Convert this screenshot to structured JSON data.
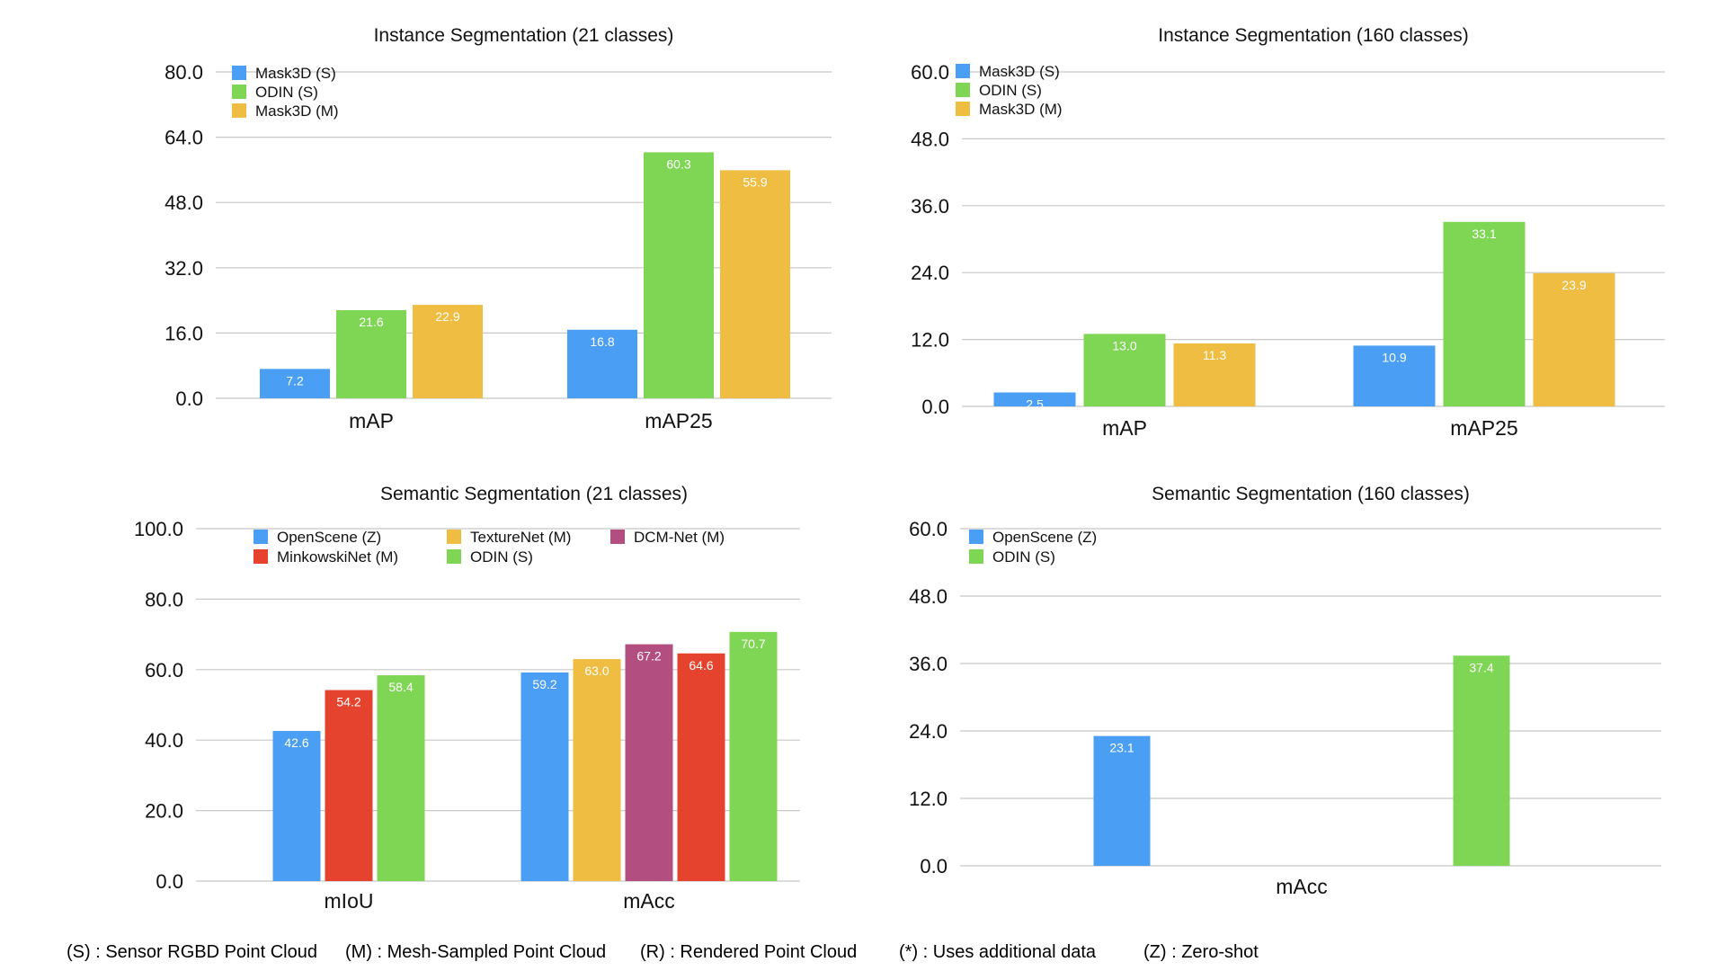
{
  "colors": {
    "blue": "#4a9ff4",
    "green": "#7fd654",
    "yellow": "#efbd41",
    "purple": "#b24f80",
    "red": "#e5432d",
    "grid": "#c8c8c8",
    "text": "#111111"
  },
  "footnotes": [
    "(S) : Sensor RGBD Point Cloud",
    "(M) : Mesh-Sampled Point Cloud",
    "(R) : Rendered Point Cloud",
    "(*) : Uses additional data",
    "(Z) : Zero-shot"
  ],
  "chart_data": [
    {
      "type": "bar",
      "title": "Instance Segmentation (21 classes)",
      "categories": [
        "mAP",
        "mAP25"
      ],
      "ylim": [
        0,
        80
      ],
      "yticks": [
        "0.0",
        "16.0",
        "32.0",
        "48.0",
        "64.0",
        "80.0"
      ],
      "grid": true,
      "legend_position": "top-left",
      "legend_rows": [
        [
          "Mask3D (S)"
        ],
        [
          "ODIN (S)"
        ],
        [
          "Mask3D (M)"
        ]
      ],
      "series": [
        {
          "name": "Mask3D (S)",
          "color": "blue",
          "values": [
            7.2,
            16.8
          ],
          "labels": [
            "7.2",
            "16.8"
          ]
        },
        {
          "name": "ODIN (S)",
          "color": "green",
          "values": [
            21.6,
            60.3
          ],
          "labels": [
            "21.6",
            "60.3"
          ]
        },
        {
          "name": "Mask3D (M)",
          "color": "yellow",
          "values": [
            22.9,
            55.9
          ],
          "labels": [
            "22.9",
            "55.9"
          ]
        }
      ]
    },
    {
      "type": "bar",
      "title": "Instance Segmentation (160 classes)",
      "categories": [
        "mAP",
        "mAP25"
      ],
      "ylim": [
        0,
        60
      ],
      "yticks": [
        "0.0",
        "12.0",
        "24.0",
        "36.0",
        "48.0",
        "60.0"
      ],
      "grid": true,
      "legend_position": "top-left",
      "legend_rows": [
        [
          "Mask3D (S)"
        ],
        [
          "ODIN (S)"
        ],
        [
          "Mask3D (M)"
        ]
      ],
      "series": [
        {
          "name": "Mask3D (S)",
          "color": "blue",
          "values": [
            2.5,
            10.9
          ],
          "labels": [
            "2.5",
            "10.9"
          ]
        },
        {
          "name": "ODIN (S)",
          "color": "green",
          "values": [
            13.0,
            33.1
          ],
          "labels": [
            "13.0",
            "33.1"
          ]
        },
        {
          "name": "Mask3D (M)",
          "color": "yellow",
          "values": [
            11.3,
            23.9
          ],
          "labels": [
            "11.3",
            "23.9"
          ]
        }
      ]
    },
    {
      "type": "bar",
      "title": "Semantic Segmentation (21 classes)",
      "categories": [
        "mIoU",
        "mAcc"
      ],
      "ylim": [
        0,
        100
      ],
      "yticks": [
        "0.0",
        "20.0",
        "40.0",
        "60.0",
        "80.0",
        "100.0"
      ],
      "grid": true,
      "legend_position": "top",
      "legend_rows": [
        [
          "OpenScene (Z)",
          "TextureNet (M)",
          "DCM-Net (M)"
        ],
        [
          "MinkowskiNet (M)",
          "ODIN (S)"
        ]
      ],
      "series": [
        {
          "name": "OpenScene (Z)",
          "color": "blue",
          "values": [
            42.6,
            59.2
          ],
          "labels": [
            "42.6",
            "59.2"
          ]
        },
        {
          "name": "TextureNet (M)",
          "color": "yellow",
          "values": [
            null,
            63.0
          ],
          "labels": [
            "",
            "63.0"
          ]
        },
        {
          "name": "DCM-Net (M)",
          "color": "purple",
          "values": [
            null,
            67.2
          ],
          "labels": [
            "",
            "67.2"
          ]
        },
        {
          "name": "MinkowskiNet (M)",
          "color": "red",
          "values": [
            54.2,
            64.6
          ],
          "labels": [
            "54.2",
            "64.6"
          ]
        },
        {
          "name": "ODIN (S)",
          "color": "green",
          "values": [
            58.4,
            70.7
          ],
          "labels": [
            "58.4",
            "70.7"
          ]
        }
      ]
    },
    {
      "type": "bar",
      "title": "Semantic Segmentation (160 classes)",
      "categories": [
        "mAcc"
      ],
      "ylim": [
        0,
        60
      ],
      "yticks": [
        "0.0",
        "12.0",
        "24.0",
        "36.0",
        "48.0",
        "60.0"
      ],
      "grid": true,
      "legend_position": "top-left",
      "legend_rows": [
        [
          "OpenScene (Z)"
        ],
        [
          "ODIN (S)"
        ]
      ],
      "series": [
        {
          "name": "OpenScene (Z)",
          "color": "blue",
          "values": [
            23.1
          ],
          "labels": [
            "23.1"
          ]
        },
        {
          "name": "ODIN (S)",
          "color": "green",
          "values": [
            37.4
          ],
          "labels": [
            "37.4"
          ]
        }
      ]
    }
  ]
}
